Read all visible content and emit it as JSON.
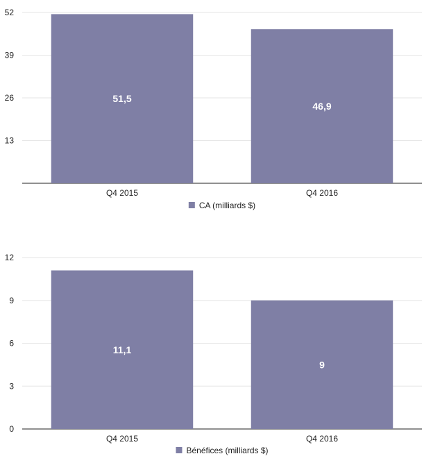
{
  "chart_data": [
    {
      "type": "bar",
      "categories": [
        "Q4 2015",
        "Q4 2016"
      ],
      "values": [
        51.5,
        46.9
      ],
      "value_labels": [
        "51,5",
        "46,9"
      ],
      "yticks": [
        13,
        26,
        39,
        52
      ],
      "ytick_labels": [
        "13",
        "26",
        "39",
        "52"
      ],
      "ylim": [
        0,
        52
      ],
      "legend": "CA (milliards $)",
      "title": "",
      "xlabel": "",
      "ylabel": "",
      "color": "#7f7fa5"
    },
    {
      "type": "bar",
      "categories": [
        "Q4 2015",
        "Q4 2016"
      ],
      "values": [
        11.1,
        9
      ],
      "value_labels": [
        "11,1",
        "9"
      ],
      "yticks": [
        0,
        3,
        6,
        9,
        12
      ],
      "ytick_labels": [
        "0",
        "3",
        "6",
        "9",
        "12"
      ],
      "ylim": [
        0,
        12
      ],
      "legend": "Bénéfices (milliards $)",
      "title": "",
      "xlabel": "",
      "ylabel": "",
      "color": "#7f7fa5"
    }
  ]
}
